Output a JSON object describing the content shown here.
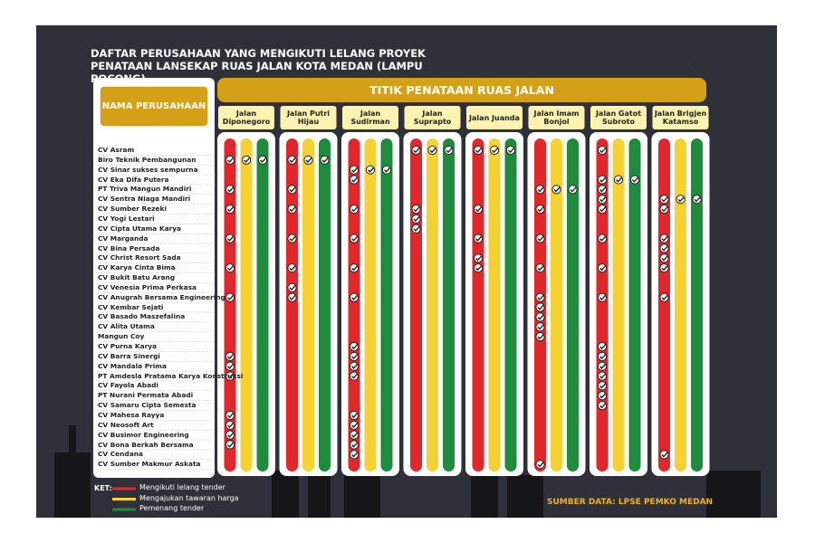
{
  "title": "DAFTAR PERUSAHAAN YANG MENGIKUTI LELANG PROYEK PENATAAN LANSEKAP RUAS JALAN KOTA MEDAN (LAMPU POCONG)",
  "company_header": "NAMA PERUSAHAAN",
  "roads_header": "TITIK PENATAAN RUAS JALAN",
  "companies": [
    "CV Asram",
    "Biro Teknik Pembangunan",
    "CV Sinar sukses sempurna",
    "CV Eka Difa Putera",
    "PT Triva Mangun Mandiri",
    "CV Sentra Niaga Mandiri",
    "CV  Sumber Rezeki",
    "CV Yogi Lestari",
    "CV Cipta Utama Karya",
    "CV Marganda",
    "CV Bina Persada",
    "CV Christ Resort Sada",
    "CV Karya Cinta Bima",
    "CV Bukit Batu Arang",
    "CV Venesia Prima Perkasa",
    "CV Anugrah Bersama Engineering",
    "CV Kembar Sejati",
    "CV Basado Maszefalina",
    "CV Alita Utama",
    "Mangun Coy",
    "CV Purna Karya",
    "CV Barra Sinergi",
    "CV Mandala Prima",
    "PT Amdesla Pratama Karya Konstruksi",
    "CV Fayola Abadi",
    "PT Nurani Permata Abadi",
    "CV Samaru Cipta Semesta",
    "CV Mahesa Rayya",
    "CV Neosoft Art",
    "CV Busimor Engineering",
    "CV Bona Berkah Bersama",
    "CV Cendana",
    "CV Sumber Makmur Askata"
  ],
  "roads": [
    {
      "name": "Jalan Diponegoro",
      "followed": [
        1,
        4,
        6,
        9,
        12,
        15,
        21,
        22,
        23,
        27,
        28,
        29,
        30
      ],
      "bid": [
        1
      ],
      "winner": [
        1
      ]
    },
    {
      "name": "Jalan Putri Hijau",
      "followed": [
        1,
        4,
        6,
        9,
        12,
        14,
        15
      ],
      "bid": [
        1
      ],
      "winner": [
        1
      ]
    },
    {
      "name": "Jalan Sudirman",
      "followed": [
        2,
        3,
        6,
        9,
        12,
        15,
        20,
        21,
        22,
        23,
        27,
        28,
        29,
        30,
        31
      ],
      "bid": [
        2
      ],
      "winner": [
        2
      ]
    },
    {
      "name": "Jalan Suprapto",
      "followed": [
        0,
        6,
        7,
        8
      ],
      "bid": [
        0
      ],
      "winner": [
        0
      ]
    },
    {
      "name": "Jalan Juanda",
      "followed": [
        0,
        6,
        9,
        11,
        12
      ],
      "bid": [
        0
      ],
      "winner": [
        0
      ]
    },
    {
      "name": "Jalan Imam Bonjol",
      "followed": [
        4,
        6,
        9,
        12,
        15,
        16,
        17,
        18,
        19,
        32
      ],
      "bid": [
        4
      ],
      "winner": [
        4
      ]
    },
    {
      "name": "Jalan Gatot Subroto",
      "followed": [
        0,
        3,
        4,
        5,
        6,
        9,
        12,
        15,
        20,
        21,
        22,
        23,
        24,
        25,
        26
      ],
      "bid": [
        3
      ],
      "winner": [
        3
      ]
    },
    {
      "name": "Jalan Brigjen Katamso",
      "followed": [
        5,
        6,
        9,
        10,
        11,
        12,
        15,
        31
      ],
      "bid": [
        5
      ],
      "winner": [
        5
      ]
    }
  ],
  "legend": {
    "label": "KET:",
    "items": [
      {
        "name": "Mengikuti lelang tender",
        "color": "#e3262a"
      },
      {
        "name": "Mengajukan tawaran harga",
        "color": "#f5d232"
      },
      {
        "name": "Pemenang tender",
        "color": "#1e8c3c"
      }
    ]
  },
  "source": "SUMBER DATA: LPSE  PEMKO MEDAN"
}
